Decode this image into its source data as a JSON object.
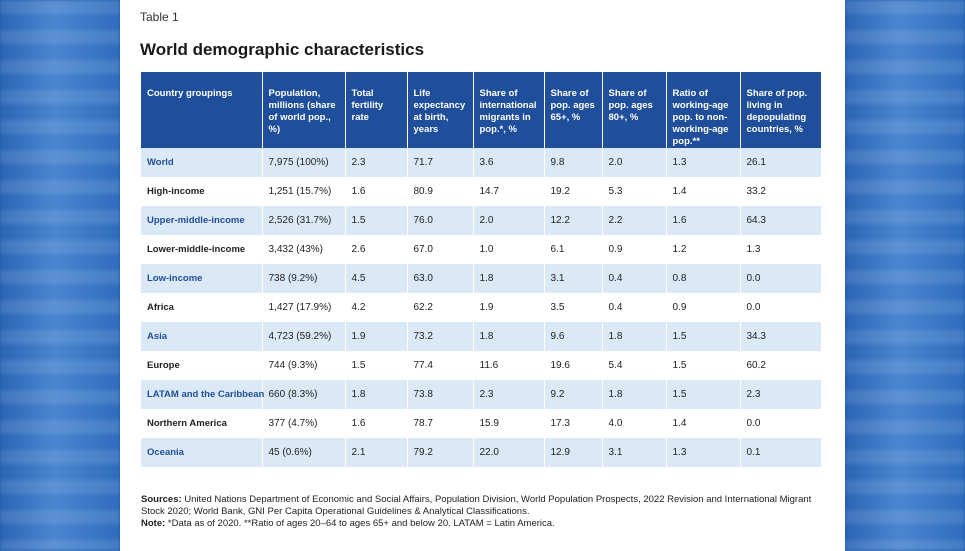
{
  "table_label": "Table 1",
  "title": "World demographic characteristics",
  "columns": [
    "Country groupings",
    "Population, millions (share of world pop., %)",
    "Total fertility rate",
    "Life expectancy at birth, years",
    "Share of international migrants in pop.*, %",
    "Share of pop. ages 65+, %",
    "Share of pop. ages 80+, %",
    "Ratio of working-age pop. to non-working-age pop.**",
    "Share of pop. living in depopulating countries, %"
  ],
  "rows": [
    [
      "World",
      "7,975 (100%)",
      "2.3",
      "71.7",
      "3.6",
      "9.8",
      "2.0",
      "1.3",
      "26.1"
    ],
    [
      "High-income",
      "1,251 (15.7%)",
      "1.6",
      "80.9",
      "14.7",
      "19.2",
      "5.3",
      "1.4",
      "33.2"
    ],
    [
      "Upper-middle-income",
      "2,526 (31.7%)",
      "1.5",
      "76.0",
      "2.0",
      "12.2",
      "2.2",
      "1.6",
      "64.3"
    ],
    [
      "Lower-middle-income",
      "3,432 (43%)",
      "2.6",
      "67.0",
      "1.0",
      "6.1",
      "0.9",
      "1.2",
      "1.3"
    ],
    [
      "Low-income",
      "738 (9.2%)",
      "4.5",
      "63.0",
      "1.8",
      "3.1",
      "0.4",
      "0.8",
      "0.0"
    ],
    [
      "Africa",
      "1,427 (17.9%)",
      "4.2",
      "62.2",
      "1.9",
      "3.5",
      "0.4",
      "0.9",
      "0.0"
    ],
    [
      "Asia",
      "4,723 (59.2%)",
      "1.9",
      "73.2",
      "1.8",
      "9.6",
      "1.8",
      "1.5",
      "34.3"
    ],
    [
      "Europe",
      "744 (9.3%)",
      "1.5",
      "77.4",
      "11.6",
      "19.6",
      "5.4",
      "1.5",
      "60.2"
    ],
    [
      "LATAM and the Caribbean",
      "660 (8.3%)",
      "1.8",
      "73.8",
      "2.3",
      "9.2",
      "1.8",
      "1.5",
      "2.3"
    ],
    [
      "Northern America",
      "377 (4.7%)",
      "1.6",
      "78.7",
      "15.9",
      "17.3",
      "4.0",
      "1.4",
      "0.0"
    ],
    [
      "Oceania",
      "45 (0.6%)",
      "2.1",
      "79.2",
      "22.0",
      "12.9",
      "3.1",
      "1.3",
      "0.1"
    ]
  ],
  "sources_label": "Sources:",
  "sources_text": "United Nations Department of Economic and Social Affairs, Population Division, World Population Prospects, 2022 Revision and International Migrant Stock 2020; World Bank, GNI Per Capita Operational Guidelines & Analytical Classifications.",
  "note_label": "Note:",
  "note_text": "*Data as of 2020. **Ratio of ages 20–64 to ages 65+ and below 20. LATAM = Latin America."
}
